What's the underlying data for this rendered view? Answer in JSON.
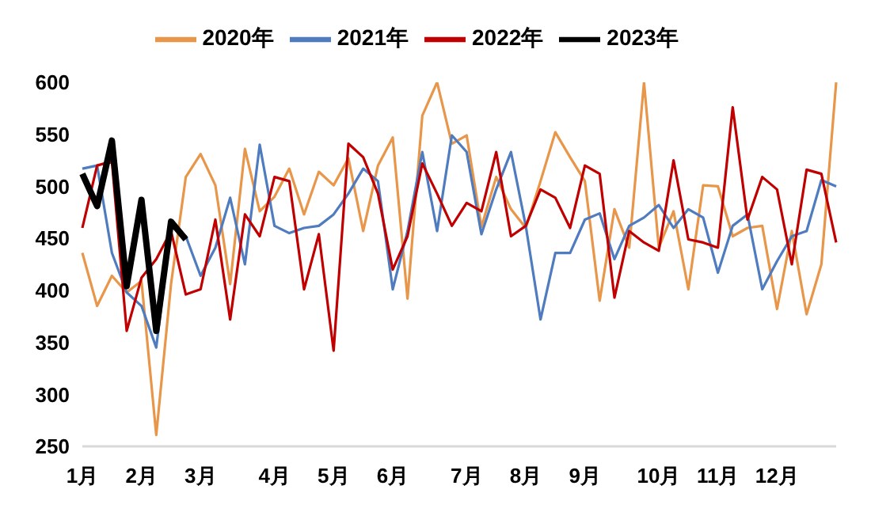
{
  "chart_data": {
    "type": "line",
    "categories": [
      "1月",
      null,
      null,
      null,
      "2月",
      null,
      null,
      null,
      "3月",
      null,
      null,
      null,
      null,
      "4月",
      null,
      null,
      null,
      "5月",
      null,
      null,
      null,
      "6月",
      null,
      null,
      null,
      null,
      "7月",
      null,
      null,
      null,
      "8月",
      null,
      null,
      null,
      "9月",
      null,
      null,
      null,
      null,
      "10月",
      null,
      null,
      null,
      "11月",
      null,
      null,
      null,
      "12月",
      null,
      null,
      null,
      null
    ],
    "series": [
      {
        "name": "2020年",
        "color": "#e8964a",
        "values": [
          436,
          385,
          414,
          398,
          409,
          261,
          406,
          509,
          531,
          501,
          406,
          536,
          476,
          490,
          517,
          473,
          514,
          501,
          527,
          457,
          520,
          547,
          392,
          568,
          600,
          541,
          549,
          461,
          509,
          478,
          460,
          505,
          552,
          528,
          505,
          390,
          478,
          441,
          600,
          441,
          476,
          401,
          501,
          500,
          452,
          460,
          462,
          382,
          457,
          377,
          425,
          600
        ]
      },
      {
        "name": "2021年",
        "color": "#4f7bbf",
        "values": [
          517,
          520,
          436,
          398,
          385,
          345,
          462,
          452,
          414,
          441,
          489,
          425,
          540,
          462,
          455,
          460,
          462,
          473,
          493,
          517,
          505,
          401,
          457,
          533,
          457,
          549,
          533,
          454,
          497,
          533,
          462,
          372,
          436,
          436,
          468,
          474,
          430,
          462,
          470,
          482,
          460,
          478,
          470,
          417,
          462,
          473,
          401,
          428,
          452,
          457,
          506,
          500
        ]
      },
      {
        "name": "2022年",
        "color": "#c00000",
        "values": [
          460,
          520,
          524,
          361,
          412,
          430,
          457,
          396,
          401,
          468,
          372,
          473,
          452,
          509,
          505,
          401,
          454,
          342,
          541,
          528,
          493,
          420,
          452,
          522,
          493,
          462,
          484,
          476,
          533,
          452,
          462,
          497,
          489,
          460,
          520,
          512,
          393,
          457,
          446,
          438,
          525,
          449,
          446,
          441,
          576,
          468,
          509,
          497,
          425,
          516,
          512,
          446
        ]
      },
      {
        "name": "2023年",
        "color": "#000000",
        "values": [
          512,
          481,
          544,
          404,
          487,
          361,
          466,
          449,
          null,
          null,
          null,
          null,
          null,
          null,
          null,
          null,
          null,
          null,
          null,
          null,
          null,
          null,
          null,
          null,
          null,
          null,
          null,
          null,
          null,
          null,
          null,
          null,
          null,
          null,
          null,
          null,
          null,
          null,
          null,
          null,
          null,
          null,
          null,
          null,
          null,
          null,
          null,
          null,
          null,
          null,
          null,
          null
        ]
      }
    ],
    "ylim": [
      250,
      600
    ],
    "yticks": [
      250,
      300,
      350,
      400,
      450,
      500,
      550,
      600
    ],
    "legend": "top",
    "line_style": "solid"
  }
}
